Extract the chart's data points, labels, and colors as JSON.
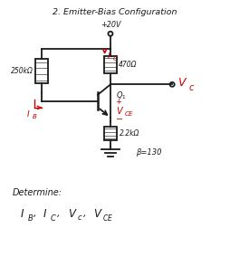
{
  "title": "2. Emitter-Bias Configuration",
  "vcc_label": "+20V",
  "r1_label": "250kΩ",
  "rc_label": "470Ω",
  "re_label": "2.2kΩ",
  "beta_label": "β=130",
  "determine_label": "Determine:",
  "bg_color": "#ffffff",
  "line_color": "#1a1a1a",
  "red_color": "#cc0000",
  "figw": 2.54,
  "figh": 2.94,
  "dpi": 100
}
